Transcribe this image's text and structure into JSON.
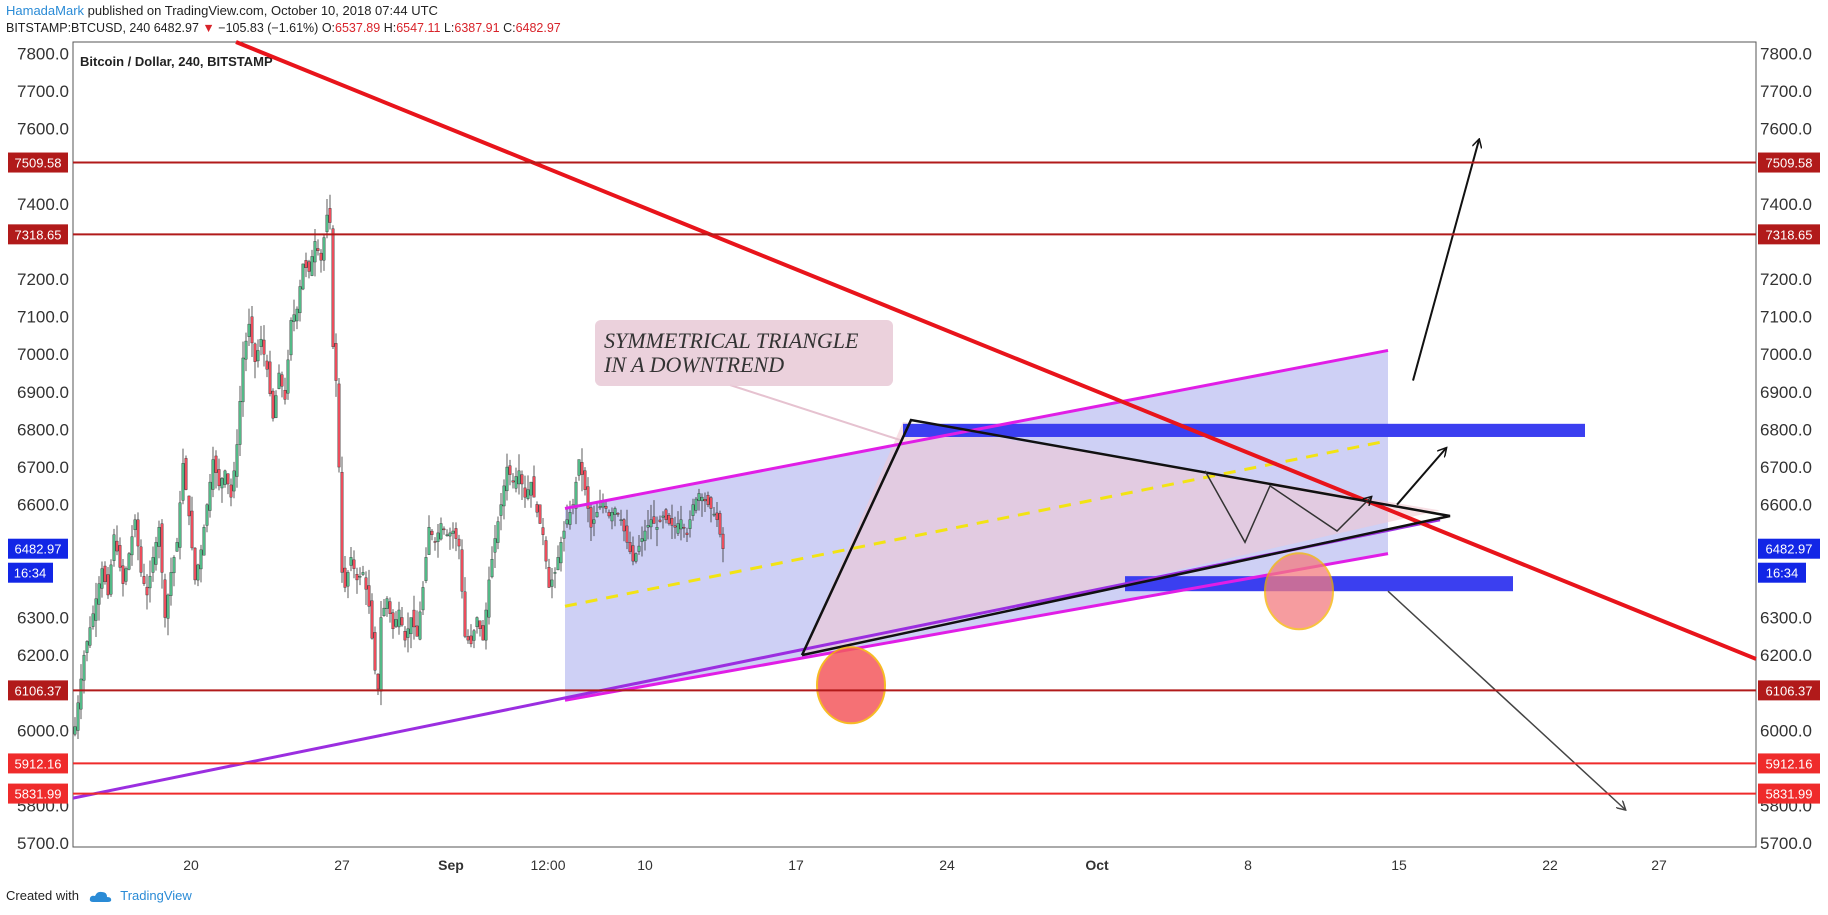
{
  "header": {
    "author": "HamadaMark",
    "published_text": "published on TradingView.com, October 10, 2018 07:44 UTC",
    "symbol": "BITSTAMP:BTCUSD, 240",
    "last_price": "6482.97",
    "change_arrow": "▼",
    "change": "−105.83 (−1.61%)",
    "open_label": "O:",
    "open": "6537.89",
    "high_label": "H:",
    "high": "6547.11",
    "low_label": "L:",
    "low": "6387.91",
    "close_label": "C:",
    "close": "6482.97"
  },
  "footer": {
    "created_with": "Created with",
    "brand": "TradingView"
  },
  "colors": {
    "candle_up": "#53b987",
    "candle_down": "#eb4d5c",
    "resistance_line": "#b11a1a",
    "support_line": "#ef2b2b",
    "downtrend_line": "#e8141b",
    "channel_fill": "#a5a9ec",
    "channel_edge": "#e01ee6",
    "zone": "#3b3ff0",
    "current_price_tag": "#1226e6"
  },
  "chart_data": {
    "type": "candlestick",
    "title": "Bitcoin / Dollar, 240, BITSTAMP",
    "ylim": [
      5690,
      7830
    ],
    "y_ticks": [
      "7800.0",
      "7700.0",
      "7600.0",
      "7400.0",
      "7200.0",
      "7100.0",
      "7000.0",
      "6900.0",
      "6800.0",
      "6700.0",
      "6600.0",
      "6300.0",
      "6200.0",
      "6000.0",
      "5800.0",
      "5700.0"
    ],
    "x_ticks": [
      {
        "label": "20",
        "bold": false
      },
      {
        "label": "27",
        "bold": false
      },
      {
        "label": "Sep",
        "bold": true
      },
      {
        "label": "12:00",
        "bold": false
      },
      {
        "label": "10",
        "bold": false
      },
      {
        "label": "17",
        "bold": false
      },
      {
        "label": "24",
        "bold": false
      },
      {
        "label": "Oct",
        "bold": true
      },
      {
        "label": "8",
        "bold": false
      },
      {
        "label": "15",
        "bold": false
      },
      {
        "label": "22",
        "bold": false
      },
      {
        "label": "27",
        "bold": false
      }
    ],
    "price_labels": [
      {
        "value": 7509.58,
        "text": "7509.58",
        "kind": "resistance"
      },
      {
        "value": 7318.65,
        "text": "7318.65",
        "kind": "resistance"
      },
      {
        "value": 6106.37,
        "text": "6106.37",
        "kind": "resistance"
      },
      {
        "value": 5912.16,
        "text": "5912.16",
        "kind": "support"
      },
      {
        "value": 5831.99,
        "text": "5831.99",
        "kind": "support"
      }
    ],
    "current_price": {
      "value": 6482.97,
      "text": "6482.97",
      "countdown": "16:34"
    },
    "close_path": [
      [
        0,
        6010
      ],
      [
        3,
        6200
      ],
      [
        6,
        6310
      ],
      [
        9,
        6430
      ],
      [
        11,
        6360
      ],
      [
        13,
        6520
      ],
      [
        16,
        6390
      ],
      [
        18,
        6470
      ],
      [
        20,
        6560
      ],
      [
        22,
        6420
      ],
      [
        24,
        6360
      ],
      [
        26,
        6460
      ],
      [
        28,
        6540
      ],
      [
        30,
        6300
      ],
      [
        32,
        6420
      ],
      [
        34,
        6500
      ],
      [
        36,
        6710
      ],
      [
        38,
        6570
      ],
      [
        40,
        6400
      ],
      [
        42,
        6480
      ],
      [
        44,
        6600
      ],
      [
        46,
        6720
      ],
      [
        48,
        6650
      ],
      [
        50,
        6690
      ],
      [
        52,
        6620
      ],
      [
        54,
        6760
      ],
      [
        56,
        6990
      ],
      [
        58,
        7080
      ],
      [
        60,
        6980
      ],
      [
        62,
        7040
      ],
      [
        64,
        6960
      ],
      [
        66,
        6830
      ],
      [
        68,
        6950
      ],
      [
        70,
        6880
      ],
      [
        72,
        7090
      ],
      [
        74,
        7120
      ],
      [
        76,
        7240
      ],
      [
        78,
        7220
      ],
      [
        80,
        7300
      ],
      [
        82,
        7250
      ],
      [
        84,
        7370
      ],
      [
        85,
        7350
      ],
      [
        86,
        7020
      ],
      [
        87,
        6930
      ],
      [
        88,
        6700
      ],
      [
        89,
        6420
      ],
      [
        90,
        6380
      ],
      [
        92,
        6460
      ],
      [
        94,
        6400
      ],
      [
        96,
        6420
      ],
      [
        98,
        6330
      ],
      [
        100,
        6160
      ],
      [
        101,
        6110
      ],
      [
        102,
        6300
      ],
      [
        104,
        6350
      ],
      [
        106,
        6270
      ],
      [
        108,
        6320
      ],
      [
        110,
        6240
      ],
      [
        112,
        6300
      ],
      [
        114,
        6250
      ],
      [
        116,
        6380
      ],
      [
        118,
        6540
      ],
      [
        120,
        6500
      ],
      [
        122,
        6550
      ],
      [
        124,
        6520
      ],
      [
        126,
        6530
      ],
      [
        128,
        6490
      ],
      [
        130,
        6250
      ],
      [
        132,
        6230
      ],
      [
        134,
        6300
      ],
      [
        136,
        6240
      ],
      [
        138,
        6400
      ],
      [
        140,
        6510
      ],
      [
        142,
        6600
      ],
      [
        144,
        6700
      ],
      [
        146,
        6660
      ],
      [
        148,
        6690
      ],
      [
        150,
        6620
      ],
      [
        152,
        6660
      ],
      [
        154,
        6580
      ],
      [
        156,
        6520
      ],
      [
        158,
        6380
      ],
      [
        160,
        6420
      ],
      [
        162,
        6500
      ],
      [
        164,
        6560
      ],
      [
        166,
        6600
      ],
      [
        168,
        6720
      ],
      [
        170,
        6640
      ],
      [
        172,
        6540
      ],
      [
        174,
        6580
      ],
      [
        176,
        6610
      ],
      [
        178,
        6570
      ],
      [
        180,
        6590
      ],
      [
        182,
        6560
      ],
      [
        184,
        6500
      ],
      [
        186,
        6450
      ],
      [
        188,
        6490
      ],
      [
        190,
        6530
      ],
      [
        192,
        6560
      ],
      [
        194,
        6540
      ],
      [
        196,
        6570
      ],
      [
        198,
        6550
      ],
      [
        200,
        6540
      ],
      [
        202,
        6560
      ],
      [
        204,
        6520
      ],
      [
        206,
        6600
      ],
      [
        208,
        6630
      ],
      [
        210,
        6610
      ],
      [
        212,
        6590
      ],
      [
        214,
        6560
      ],
      [
        216,
        6482.97
      ]
    ]
  },
  "annotations": {
    "callout_line1": "SYMMETRICAL TRIANGLE",
    "callout_line2": "IN A DOWNTREND"
  }
}
